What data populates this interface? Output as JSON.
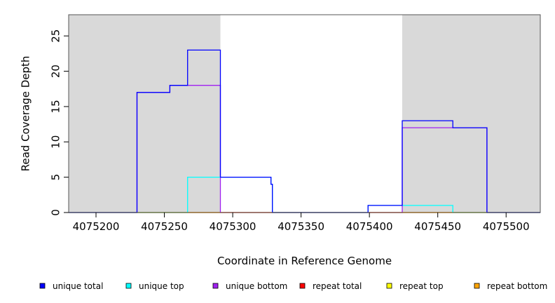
{
  "chart_data": {
    "type": "line",
    "step": true,
    "xlabel": "Coordinate in Reference Genome",
    "ylabel": "Read Coverage Depth",
    "xlim": [
      4075180,
      4075525
    ],
    "ylim": [
      0,
      28
    ],
    "x_ticks": [
      4075200,
      4075250,
      4075300,
      4075350,
      4075400,
      4075450,
      4075500
    ],
    "x_tick_labels": [
      "4075200",
      "4075250",
      "4075300",
      "4075350",
      "4075400",
      "4075450",
      "4075500"
    ],
    "y_ticks": [
      0,
      5,
      10,
      15,
      20,
      25
    ],
    "y_tick_labels": [
      "0",
      "5",
      "10",
      "15",
      "20",
      "25"
    ],
    "grid": false,
    "legend_position": "bottom",
    "shaded_regions": [
      {
        "x0": 4075180,
        "x1": 4075291,
        "color": "#d9d9d9"
      },
      {
        "x0": 4075424,
        "x1": 4075525,
        "color": "#d9d9d9"
      }
    ],
    "series": [
      {
        "name": "unique total",
        "color": "#0000ff",
        "x": [
          4075180,
          4075230,
          4075230,
          4075254,
          4075254,
          4075267,
          4075267,
          4075291,
          4075291,
          4075328,
          4075328,
          4075329,
          4075329,
          4075399,
          4075399,
          4075424,
          4075424,
          4075461,
          4075461,
          4075486,
          4075486,
          4075525
        ],
        "y": [
          0,
          0,
          17,
          17,
          18,
          18,
          23,
          23,
          5,
          5,
          4,
          4,
          0,
          0,
          1,
          1,
          13,
          13,
          12,
          12,
          0,
          0
        ]
      },
      {
        "name": "unique top",
        "color": "#00ffff",
        "x": [
          4075180,
          4075267,
          4075267,
          4075328,
          4075328,
          4075329,
          4075329,
          4075399,
          4075399,
          4075461,
          4075461,
          4075525
        ],
        "y": [
          0,
          0,
          5,
          5,
          4,
          4,
          0,
          0,
          1,
          1,
          0,
          0
        ]
      },
      {
        "name": "unique bottom",
        "color": "#a020f0",
        "x": [
          4075180,
          4075230,
          4075230,
          4075254,
          4075254,
          4075291,
          4075291,
          4075424,
          4075424,
          4075486,
          4075486,
          4075525
        ],
        "y": [
          0,
          0,
          17,
          17,
          18,
          18,
          0,
          0,
          12,
          12,
          0,
          0
        ]
      },
      {
        "name": "repeat total",
        "color": "#ff0000",
        "x": [
          4075180,
          4075525
        ],
        "y": [
          0,
          0
        ]
      },
      {
        "name": "repeat top",
        "color": "#ffff00",
        "x": [
          4075180,
          4075525
        ],
        "y": [
          0,
          0
        ]
      },
      {
        "name": "repeat bottom",
        "color": "#ffa500",
        "x": [
          4075180,
          4075525
        ],
        "y": [
          0,
          0
        ]
      }
    ]
  }
}
